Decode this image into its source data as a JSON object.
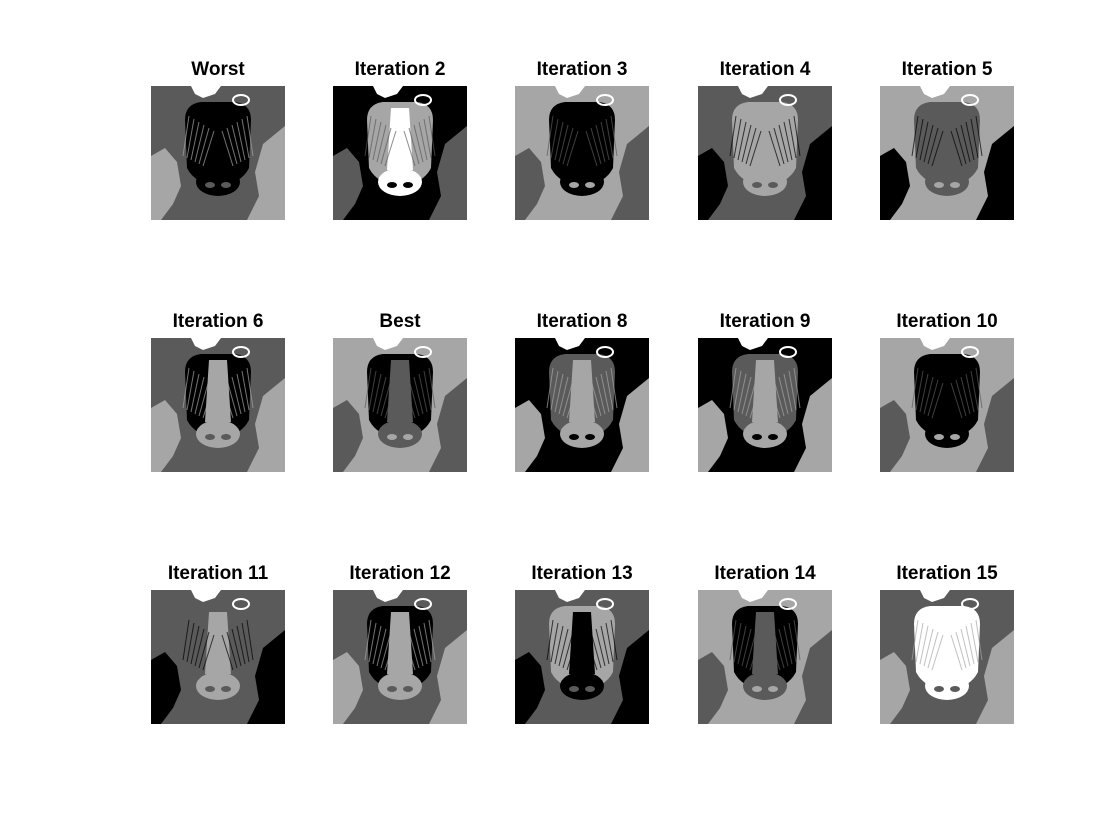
{
  "figure": {
    "background": "#ffffff",
    "panels": [
      {
        "title": "Worst",
        "bg": "#5a5a5a",
        "face": "#000000",
        "center": "#000000",
        "mid": "#a6a6a6",
        "lower": "#000000",
        "accent": "#ffffff"
      },
      {
        "title": "Iteration 2",
        "bg": "#000000",
        "face": "#a6a6a6",
        "center": "#ffffff",
        "mid": "#5a5a5a",
        "lower": "#ffffff",
        "accent": "#ffffff"
      },
      {
        "title": "Iteration 3",
        "bg": "#a6a6a6",
        "face": "#000000",
        "center": "#000000",
        "mid": "#5a5a5a",
        "lower": "#000000",
        "accent": "#ffffff"
      },
      {
        "title": "Iteration 4",
        "bg": "#5a5a5a",
        "face": "#a6a6a6",
        "center": "#a6a6a6",
        "mid": "#000000",
        "lower": "#a6a6a6",
        "accent": "#ffffff"
      },
      {
        "title": "Iteration 5",
        "bg": "#a6a6a6",
        "face": "#5a5a5a",
        "center": "#5a5a5a",
        "mid": "#000000",
        "lower": "#5a5a5a",
        "accent": "#ffffff"
      },
      {
        "title": "Iteration 6",
        "bg": "#5a5a5a",
        "face": "#000000",
        "center": "#a6a6a6",
        "mid": "#a6a6a6",
        "lower": "#a6a6a6",
        "accent": "#ffffff"
      },
      {
        "title": "Best",
        "bg": "#a6a6a6",
        "face": "#000000",
        "center": "#5a5a5a",
        "mid": "#5a5a5a",
        "lower": "#5a5a5a",
        "accent": "#ffffff"
      },
      {
        "title": "Iteration 8",
        "bg": "#000000",
        "face": "#5a5a5a",
        "center": "#a6a6a6",
        "mid": "#a6a6a6",
        "lower": "#a6a6a6",
        "accent": "#ffffff"
      },
      {
        "title": "Iteration 9",
        "bg": "#000000",
        "face": "#5a5a5a",
        "center": "#a6a6a6",
        "mid": "#a6a6a6",
        "lower": "#a6a6a6",
        "accent": "#ffffff"
      },
      {
        "title": "Iteration 10",
        "bg": "#a6a6a6",
        "face": "#000000",
        "center": "#000000",
        "mid": "#5a5a5a",
        "lower": "#000000",
        "accent": "#ffffff"
      },
      {
        "title": "Iteration 11",
        "bg": "#5a5a5a",
        "face": "#5a5a5a",
        "center": "#a6a6a6",
        "mid": "#000000",
        "lower": "#a6a6a6",
        "accent": "#ffffff"
      },
      {
        "title": "Iteration 12",
        "bg": "#5a5a5a",
        "face": "#000000",
        "center": "#a6a6a6",
        "mid": "#a6a6a6",
        "lower": "#a6a6a6",
        "accent": "#ffffff"
      },
      {
        "title": "Iteration 13",
        "bg": "#5a5a5a",
        "face": "#a6a6a6",
        "center": "#000000",
        "mid": "#000000",
        "lower": "#000000",
        "accent": "#ffffff"
      },
      {
        "title": "Iteration 14",
        "bg": "#a6a6a6",
        "face": "#000000",
        "center": "#5a5a5a",
        "mid": "#5a5a5a",
        "lower": "#5a5a5a",
        "accent": "#ffffff"
      },
      {
        "title": "Iteration 15",
        "bg": "#5a5a5a",
        "face": "#ffffff",
        "center": "#ffffff",
        "mid": "#a6a6a6",
        "lower": "#ffffff",
        "accent": "#ffffff"
      }
    ]
  }
}
